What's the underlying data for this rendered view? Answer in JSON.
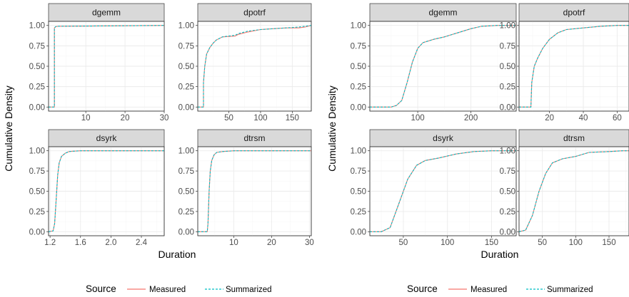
{
  "colors": {
    "Measured": "#F8766D",
    "Summarized": "#00BFC4"
  },
  "chart_data": [
    {
      "type": "line",
      "ylabel": "Cumulative Density",
      "xlabel": "Duration",
      "legend": {
        "title": "Source",
        "position": "bottom",
        "items": [
          "Measured",
          "Summarized"
        ]
      },
      "ylim": [
        0,
        1.05
      ],
      "y_ticks": [
        0.0,
        0.25,
        0.5,
        0.75,
        1.0
      ],
      "y_tick_labels": [
        "0.00",
        "0.25",
        "0.50",
        "0.75",
        "1.00"
      ],
      "facets": [
        {
          "name": "dgemm",
          "xlim": [
            0.5,
            30
          ],
          "x_ticks": [
            10,
            20,
            30
          ],
          "x_tick_labels": [
            "10",
            "20",
            "30"
          ],
          "show_x_ticks": false,
          "series": [
            {
              "name": "Measured",
              "x": [
                0.5,
                2.0,
                2.0,
                2.3,
                3,
                30
              ],
              "y": [
                0,
                0,
                0.97,
                0.985,
                0.99,
                1.0
              ]
            },
            {
              "name": "Summarized",
              "x": [
                0.5,
                2.0,
                2.0,
                2.3,
                3,
                30
              ],
              "y": [
                0,
                0,
                0.97,
                0.985,
                0.99,
                1.0
              ]
            }
          ]
        },
        {
          "name": "dpotrf",
          "xlim": [
            1,
            180
          ],
          "x_ticks": [
            50,
            100,
            150
          ],
          "x_tick_labels": [
            "50",
            "100",
            "150"
          ],
          "show_x_ticks": false,
          "series": [
            {
              "name": "Measured",
              "x": [
                1,
                10,
                10,
                12,
                15,
                20,
                25,
                30,
                40,
                60,
                65,
                80,
                100,
                120,
                140,
                160,
                170,
                180
              ],
              "y": [
                0,
                0,
                0.3,
                0.5,
                0.65,
                0.73,
                0.78,
                0.82,
                0.86,
                0.87,
                0.89,
                0.92,
                0.95,
                0.96,
                0.97,
                0.97,
                0.98,
                1.0
              ]
            },
            {
              "name": "Summarized",
              "x": [
                1,
                10,
                10,
                12,
                15,
                20,
                25,
                30,
                40,
                60,
                65,
                80,
                100,
                120,
                140,
                160,
                170,
                180
              ],
              "y": [
                0,
                0,
                0.3,
                0.5,
                0.65,
                0.73,
                0.78,
                0.82,
                0.86,
                0.88,
                0.9,
                0.93,
                0.95,
                0.96,
                0.97,
                0.98,
                0.99,
                1.0
              ]
            }
          ]
        },
        {
          "name": "dsyrk",
          "xlim": [
            1.18,
            2.7
          ],
          "x_ticks": [
            1.2,
            1.6,
            2.0,
            2.4
          ],
          "x_tick_labels": [
            "1.2",
            "1.6",
            "2.0",
            "2.4"
          ],
          "show_x_ticks": true,
          "series": [
            {
              "name": "Measured",
              "x": [
                1.18,
                1.24,
                1.26,
                1.28,
                1.3,
                1.32,
                1.35,
                1.4,
                1.45,
                1.5,
                1.6,
                2.7
              ],
              "y": [
                0,
                0.01,
                0.1,
                0.4,
                0.7,
                0.85,
                0.93,
                0.97,
                0.99,
                0.995,
                1.0,
                1.0
              ]
            },
            {
              "name": "Summarized",
              "x": [
                1.18,
                1.24,
                1.26,
                1.28,
                1.3,
                1.32,
                1.35,
                1.4,
                1.45,
                1.5,
                1.6,
                2.7
              ],
              "y": [
                0,
                0.01,
                0.1,
                0.4,
                0.7,
                0.85,
                0.93,
                0.97,
                0.99,
                0.995,
                1.0,
                1.0
              ]
            }
          ]
        },
        {
          "name": "dtrsm",
          "xlim": [
            0.5,
            30.5
          ],
          "x_ticks": [
            10,
            20,
            30
          ],
          "x_tick_labels": [
            "10",
            "20",
            "30"
          ],
          "show_x_ticks": true,
          "series": [
            {
              "name": "Measured",
              "x": [
                0.5,
                3.0,
                3.2,
                3.5,
                3.8,
                4.2,
                4.8,
                5.5,
                7.0,
                10,
                30.5
              ],
              "y": [
                0,
                0,
                0.1,
                0.5,
                0.75,
                0.88,
                0.95,
                0.98,
                0.99,
                1.0,
                1.0
              ]
            },
            {
              "name": "Summarized",
              "x": [
                0.5,
                3.0,
                3.2,
                3.5,
                3.8,
                4.2,
                4.8,
                5.5,
                7.0,
                10,
                30.5
              ],
              "y": [
                0,
                0,
                0.1,
                0.5,
                0.75,
                0.88,
                0.95,
                0.98,
                0.99,
                1.0,
                1.0
              ]
            }
          ]
        }
      ]
    },
    {
      "type": "line",
      "ylabel": "Cumulative Density",
      "xlabel": "Duration",
      "legend": {
        "title": "Source",
        "position": "bottom",
        "items": [
          "Measured",
          "Summarized"
        ]
      },
      "ylim": [
        0,
        1.05
      ],
      "y_ticks": [
        0.0,
        0.25,
        0.5,
        0.75,
        1.0
      ],
      "y_tick_labels": [
        "0.00",
        "0.25",
        "0.50",
        "0.75",
        "1.00"
      ],
      "facets": [
        {
          "name": "dgemm",
          "xlim": [
            10,
            285
          ],
          "x_ticks": [
            100,
            200
          ],
          "x_tick_labels": [
            "100",
            "200"
          ],
          "show_x_ticks": false,
          "series": [
            {
              "name": "Measured",
              "x": [
                10,
                50,
                60,
                70,
                80,
                90,
                100,
                110,
                130,
                150,
                170,
                200,
                220,
                250,
                285
              ],
              "y": [
                0,
                0,
                0.02,
                0.08,
                0.3,
                0.55,
                0.72,
                0.79,
                0.83,
                0.86,
                0.9,
                0.96,
                0.99,
                1.0,
                1.0
              ]
            },
            {
              "name": "Summarized",
              "x": [
                10,
                50,
                60,
                70,
                80,
                90,
                100,
                110,
                130,
                150,
                170,
                200,
                220,
                250,
                285
              ],
              "y": [
                0,
                0,
                0.02,
                0.08,
                0.3,
                0.55,
                0.72,
                0.79,
                0.83,
                0.86,
                0.9,
                0.96,
                0.99,
                1.0,
                1.0
              ]
            }
          ]
        },
        {
          "name": "dpotrf",
          "xlim": [
            2,
            67
          ],
          "x_ticks": [
            20,
            40,
            60
          ],
          "x_tick_labels": [
            "20",
            "40",
            "60"
          ],
          "show_x_ticks": false,
          "series": [
            {
              "name": "Measured",
              "x": [
                2,
                9,
                9.5,
                11,
                13,
                16,
                20,
                25,
                30,
                40,
                50,
                60,
                67
              ],
              "y": [
                0,
                0,
                0.3,
                0.5,
                0.6,
                0.72,
                0.83,
                0.91,
                0.95,
                0.97,
                0.99,
                1.0,
                1.0
              ]
            },
            {
              "name": "Summarized",
              "x": [
                2,
                9,
                9.5,
                11,
                13,
                16,
                20,
                25,
                30,
                40,
                50,
                60,
                67
              ],
              "y": [
                0,
                0,
                0.3,
                0.5,
                0.6,
                0.72,
                0.83,
                0.91,
                0.95,
                0.97,
                0.99,
                1.0,
                1.0
              ]
            }
          ]
        },
        {
          "name": "dsyrk",
          "xlim": [
            12,
            178
          ],
          "x_ticks": [
            50,
            100,
            150
          ],
          "x_tick_labels": [
            "50",
            "100",
            "150"
          ],
          "show_x_ticks": true,
          "series": [
            {
              "name": "Measured",
              "x": [
                12,
                25,
                35,
                45,
                55,
                65,
                75,
                90,
                110,
                130,
                150,
                178
              ],
              "y": [
                0,
                0,
                0.05,
                0.35,
                0.65,
                0.82,
                0.88,
                0.91,
                0.96,
                0.99,
                1.0,
                1.0
              ]
            },
            {
              "name": "Summarized",
              "x": [
                12,
                25,
                35,
                45,
                55,
                65,
                75,
                90,
                110,
                130,
                150,
                178
              ],
              "y": [
                0,
                0,
                0.05,
                0.35,
                0.65,
                0.82,
                0.88,
                0.91,
                0.96,
                0.99,
                1.0,
                1.0
              ]
            }
          ]
        },
        {
          "name": "dtrsm",
          "xlim": [
            15,
            180
          ],
          "x_ticks": [
            50,
            100,
            150
          ],
          "x_tick_labels": [
            "50",
            "100",
            "150"
          ],
          "show_x_ticks": true,
          "series": [
            {
              "name": "Measured",
              "x": [
                15,
                25,
                35,
                45,
                55,
                65,
                80,
                100,
                120,
                150,
                170,
                180
              ],
              "y": [
                0,
                0.02,
                0.2,
                0.5,
                0.72,
                0.85,
                0.9,
                0.93,
                0.98,
                0.99,
                1.0,
                1.0
              ]
            },
            {
              "name": "Summarized",
              "x": [
                15,
                25,
                35,
                45,
                55,
                65,
                80,
                100,
                120,
                150,
                170,
                180
              ],
              "y": [
                0,
                0.02,
                0.2,
                0.5,
                0.72,
                0.85,
                0.9,
                0.93,
                0.98,
                0.99,
                1.0,
                1.0
              ]
            }
          ]
        }
      ]
    }
  ]
}
